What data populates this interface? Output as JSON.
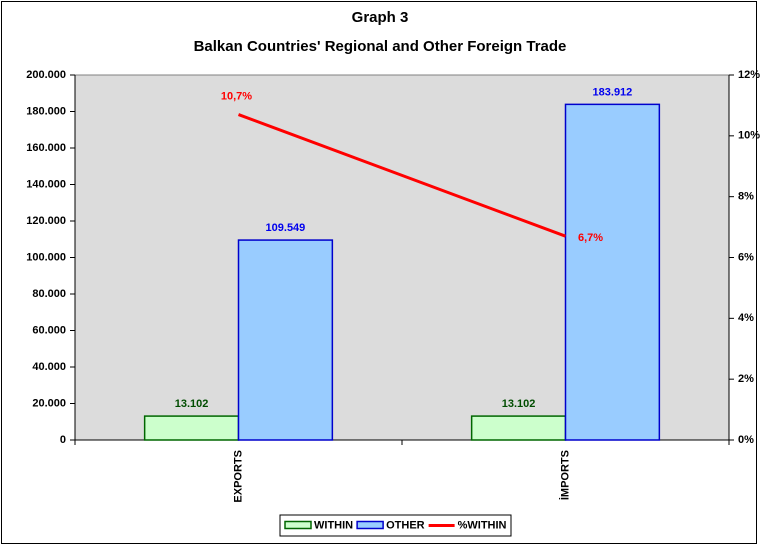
{
  "chart_data": {
    "type": "bar",
    "title": "Graph 3",
    "subtitle": "Balkan Countries' Regional and Other Foreign Trade",
    "categories": [
      "EXPORTS",
      "İMPORTS"
    ],
    "series": [
      {
        "name": "WITHIN",
        "type": "bar",
        "color": "#ccffcc",
        "border": "#006600",
        "label_color": "#004d00",
        "values": [
          13102,
          13102
        ],
        "value_labels": [
          "13.102",
          "13.102"
        ]
      },
      {
        "name": "OTHER",
        "type": "bar",
        "color": "#99ccff",
        "border": "#0000cc",
        "label_color": "#0000ee",
        "values": [
          109549,
          183912
        ],
        "value_labels": [
          "109.549",
          "183.912"
        ]
      },
      {
        "name": "%WITHIN",
        "type": "line",
        "axis": "y2",
        "color": "#ff0000",
        "label_color": "#ff0000",
        "values": [
          10.7,
          6.7
        ],
        "value_labels": [
          "10,7%",
          "6,7%"
        ]
      }
    ],
    "ylim": [
      0,
      200000
    ],
    "yticks": [
      0,
      {
        "value": 20000,
        "label": "20.000"
      },
      {
        "value": 40000,
        "label": "40.000"
      },
      {
        "value": 60000,
        "label": "60.000"
      },
      {
        "value": 80000,
        "label": "80.000"
      },
      {
        "value": 100000,
        "label": "100.000"
      },
      {
        "value": 120000,
        "label": "120.000"
      },
      {
        "value": 140000,
        "label": "140.000"
      },
      {
        "value": 160000,
        "label": "160.000"
      },
      {
        "value": 180000,
        "label": "180.000"
      },
      {
        "value": 200000,
        "label": "200.000"
      }
    ],
    "y2lim": [
      0,
      12
    ],
    "y2ticks": [
      {
        "value": 0,
        "label": "0%"
      },
      {
        "value": 2,
        "label": "2%"
      },
      {
        "value": 4,
        "label": "4%"
      },
      {
        "value": 6,
        "label": "6%"
      },
      {
        "value": 8,
        "label": "8%"
      },
      {
        "value": 10,
        "label": "10%"
      },
      {
        "value": 12,
        "label": "12%"
      }
    ],
    "grid": false,
    "plot_background": "#dcdcdc",
    "legend": "bottom"
  }
}
